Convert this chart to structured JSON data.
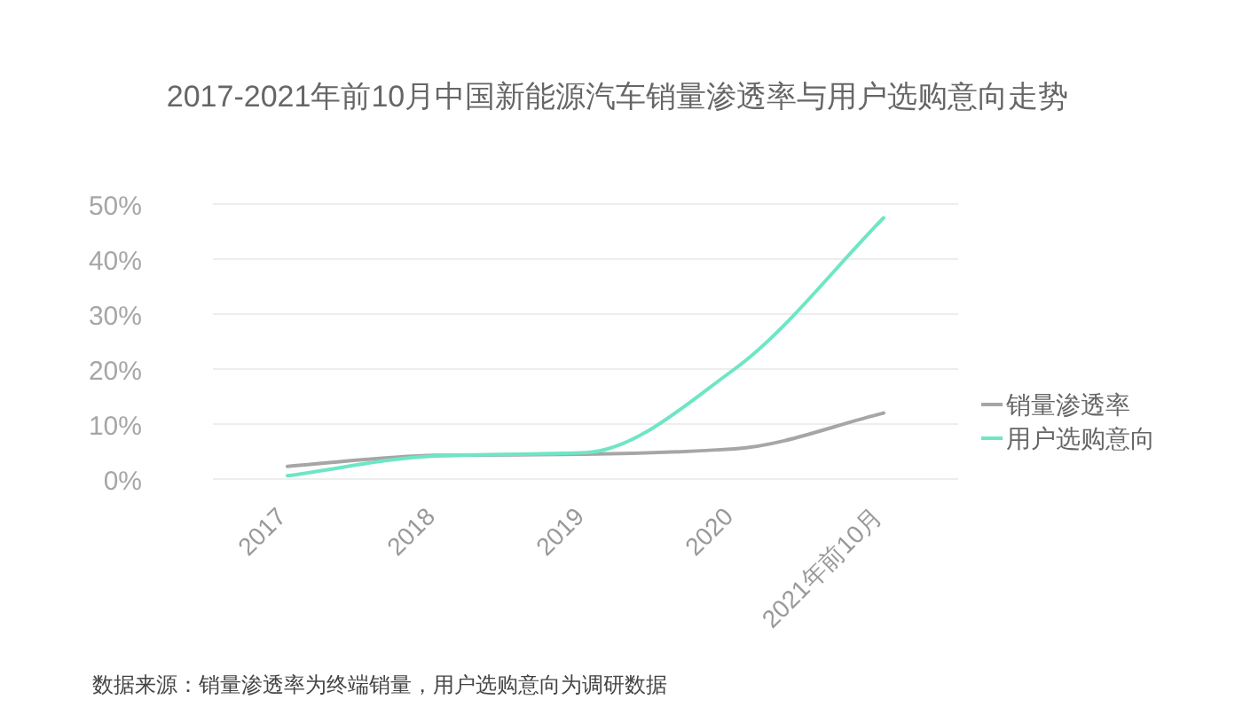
{
  "chart_data": {
    "type": "line",
    "title": "2017-2021年前10月中国新能源汽车销量渗透率与用户选购意向走势",
    "categories": [
      "2017",
      "2018",
      "2019",
      "2020",
      "2021年前10月"
    ],
    "series": [
      {
        "name": "销量渗透率",
        "color": "#a6a6a6",
        "values": [
          2.3,
          4.3,
          4.5,
          5.5,
          12
        ]
      },
      {
        "name": "用户选购意向",
        "color": "#6ee6c5",
        "values": [
          0.6,
          4.2,
          4.8,
          20,
          47.5
        ]
      }
    ],
    "ylim": [
      0,
      50
    ],
    "yticks": [
      {
        "value": 0,
        "label": "0%"
      },
      {
        "value": 10,
        "label": "10%"
      },
      {
        "value": 20,
        "label": "20%"
      },
      {
        "value": 30,
        "label": "30%"
      },
      {
        "value": 40,
        "label": "40%"
      },
      {
        "value": 50,
        "label": "50%"
      }
    ],
    "grid": "y",
    "legend": "right",
    "marker": "none",
    "line_style": "solid",
    "annotations": [
      "数据来源：销量渗透率为终端销量，用户选购意向为调研数据"
    ]
  }
}
